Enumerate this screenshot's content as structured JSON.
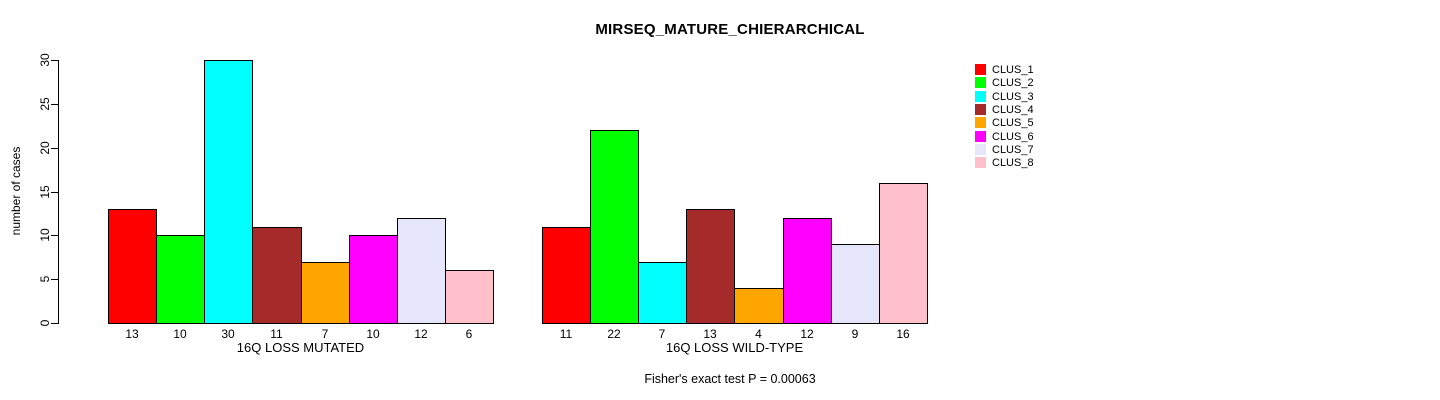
{
  "chart_data": {
    "type": "bar",
    "title": "MIRSEQ_MATURE_CHIERARCHICAL",
    "ylabel": "number of cases",
    "ylim": [
      0,
      30
    ],
    "yticks": [
      0,
      5,
      10,
      15,
      20,
      25,
      30
    ],
    "grid": false,
    "legend_position": "top-right",
    "categories": [
      "CLUS_1",
      "CLUS_2",
      "CLUS_3",
      "CLUS_4",
      "CLUS_5",
      "CLUS_6",
      "CLUS_7",
      "CLUS_8"
    ],
    "series_colors": [
      "#FF0000",
      "#00FF00",
      "#00FFFF",
      "#A52A2A",
      "#FFA500",
      "#FF00FF",
      "#E6E6FA",
      "#FFC0CB"
    ],
    "groups": [
      {
        "label": "16Q LOSS MUTATED",
        "values": [
          13,
          10,
          30,
          11,
          7,
          10,
          12,
          6
        ]
      },
      {
        "label": "16Q LOSS WILD-TYPE",
        "values": [
          11,
          22,
          7,
          13,
          4,
          12,
          9,
          16
        ]
      }
    ],
    "bar_value_labels": [
      [
        "13",
        "10",
        "30",
        "11",
        "7",
        "10",
        "12",
        "6"
      ],
      [
        "11",
        "22",
        "7",
        "13",
        "4",
        "12",
        "9",
        "16"
      ]
    ],
    "footnote": "Fisher's exact test P = 0.00063"
  }
}
